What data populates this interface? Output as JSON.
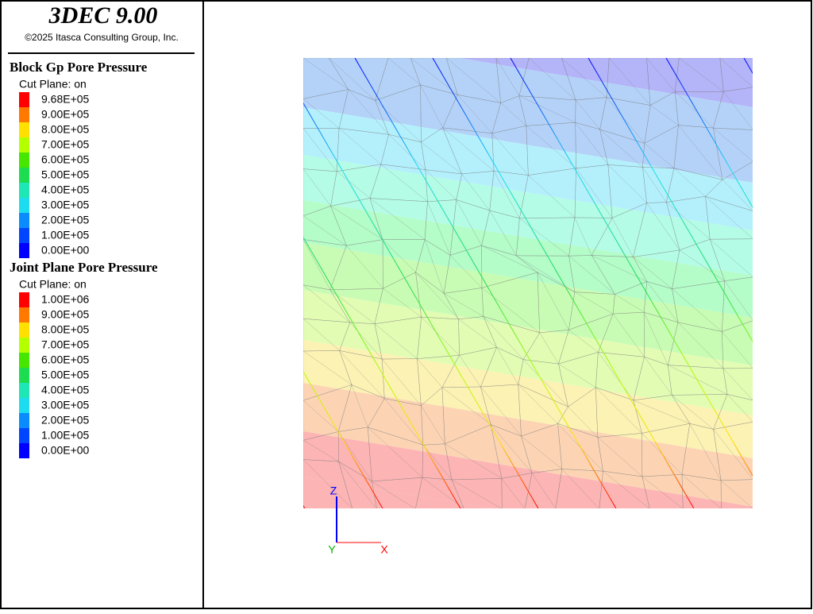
{
  "header": {
    "title": "3DEC 9.00",
    "copyright": "©2025 Itasca Consulting Group, Inc."
  },
  "legends": [
    {
      "title": "Block  Gp Pore Pressure",
      "subtitle": "Cut Plane: on",
      "entries": [
        {
          "label": "9.68E+05",
          "color": "#ff0000"
        },
        {
          "label": "9.00E+05",
          "color": "#ff7800"
        },
        {
          "label": "8.00E+05",
          "color": "#ffe000"
        },
        {
          "label": "7.00E+05",
          "color": "#b4ff00"
        },
        {
          "label": "6.00E+05",
          "color": "#46e600"
        },
        {
          "label": "5.00E+05",
          "color": "#1edc50"
        },
        {
          "label": "4.00E+05",
          "color": "#1ee6b4"
        },
        {
          "label": "3.00E+05",
          "color": "#1edcf0"
        },
        {
          "label": "2.00E+05",
          "color": "#0a8cff"
        },
        {
          "label": "1.00E+05",
          "color": "#0046ff"
        },
        {
          "label": "0.00E+00",
          "color": "#0000ff"
        }
      ]
    },
    {
      "title": "Joint Plane Pore Pressure",
      "subtitle": "Cut Plane: on",
      "entries": [
        {
          "label": "1.00E+06",
          "color": "#ff0000"
        },
        {
          "label": "9.00E+05",
          "color": "#ff7800"
        },
        {
          "label": "8.00E+05",
          "color": "#ffe000"
        },
        {
          "label": "7.00E+05",
          "color": "#b4ff00"
        },
        {
          "label": "6.00E+05",
          "color": "#46e600"
        },
        {
          "label": "5.00E+05",
          "color": "#1edc50"
        },
        {
          "label": "4.00E+05",
          "color": "#1ee6b4"
        },
        {
          "label": "3.00E+05",
          "color": "#1edcf0"
        },
        {
          "label": "2.00E+05",
          "color": "#0a8cff"
        },
        {
          "label": "1.00E+05",
          "color": "#0046ff"
        },
        {
          "label": "0.00E+00",
          "color": "#0000ff"
        }
      ]
    }
  ],
  "axes": {
    "z": "Z",
    "y": "Y",
    "x": "X"
  }
}
